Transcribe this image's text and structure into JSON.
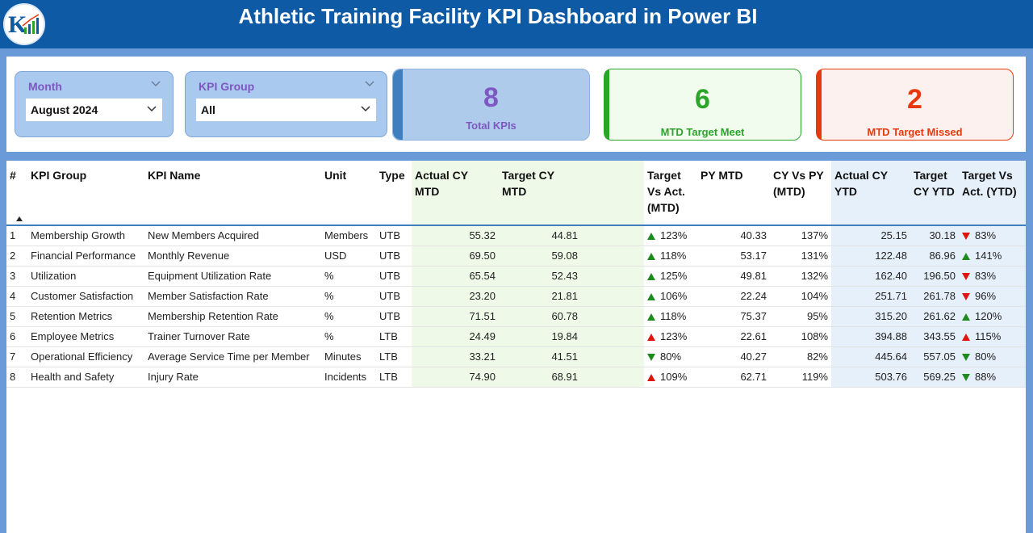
{
  "header": {
    "title": "Athletic Training Facility KPI Dashboard in Power BI",
    "logo_icon": "kpi-logo-icon"
  },
  "slicers": {
    "month": {
      "label": "Month",
      "value": "August 2024"
    },
    "kpi_group": {
      "label": "KPI Group",
      "value": "All"
    }
  },
  "cards": {
    "total": {
      "value": "8",
      "caption": "Total KPIs",
      "color": "#7e57c2"
    },
    "meet": {
      "value": "6",
      "caption": "MTD Target Meet",
      "color": "#2aa52a"
    },
    "missed": {
      "value": "2",
      "caption": "MTD Target Missed",
      "color": "#e8390e"
    }
  },
  "table": {
    "columns": [
      "#",
      "KPI Group",
      "KPI Name",
      "Unit",
      "Type",
      "Actual CY MTD",
      "Target CY MTD",
      "Target Vs Act. (MTD)",
      "PY MTD",
      "CY Vs PY (MTD)",
      "Actual CY YTD",
      "Target CY YTD",
      "Target Vs Act. (YTD)"
    ],
    "rows": [
      {
        "n": "1",
        "group": "Membership Growth",
        "name": "New Members Acquired",
        "unit": "Members",
        "type": "UTB",
        "act_mtd": "55.32",
        "tgt_mtd": "44.81",
        "mtd_icon": "up-g",
        "tva_mtd": "123%",
        "py_mtd": "40.33",
        "cvp_mtd": "137%",
        "act_ytd": "25.15",
        "tgt_ytd": "30.18",
        "ytd_icon": "dn-r",
        "tva_ytd": "83%"
      },
      {
        "n": "2",
        "group": "Financial Performance",
        "name": "Monthly Revenue",
        "unit": "USD",
        "type": "UTB",
        "act_mtd": "69.50",
        "tgt_mtd": "59.08",
        "mtd_icon": "up-g",
        "tva_mtd": "118%",
        "py_mtd": "53.17",
        "cvp_mtd": "131%",
        "act_ytd": "122.48",
        "tgt_ytd": "86.96",
        "ytd_icon": "up-g",
        "tva_ytd": "141%"
      },
      {
        "n": "3",
        "group": "Utilization",
        "name": "Equipment Utilization Rate",
        "unit": "%",
        "type": "UTB",
        "act_mtd": "65.54",
        "tgt_mtd": "52.43",
        "mtd_icon": "up-g",
        "tva_mtd": "125%",
        "py_mtd": "49.81",
        "cvp_mtd": "132%",
        "act_ytd": "162.40",
        "tgt_ytd": "196.50",
        "ytd_icon": "dn-r",
        "tva_ytd": "83%"
      },
      {
        "n": "4",
        "group": "Customer Satisfaction",
        "name": "Member Satisfaction Rate",
        "unit": "%",
        "type": "UTB",
        "act_mtd": "23.20",
        "tgt_mtd": "21.81",
        "mtd_icon": "up-g",
        "tva_mtd": "106%",
        "py_mtd": "22.24",
        "cvp_mtd": "104%",
        "act_ytd": "251.71",
        "tgt_ytd": "261.78",
        "ytd_icon": "dn-r",
        "tva_ytd": "96%"
      },
      {
        "n": "5",
        "group": "Retention Metrics",
        "name": "Membership Retention Rate",
        "unit": "%",
        "type": "UTB",
        "act_mtd": "71.51",
        "tgt_mtd": "60.78",
        "mtd_icon": "up-g",
        "tva_mtd": "118%",
        "py_mtd": "75.37",
        "cvp_mtd": "95%",
        "act_ytd": "315.20",
        "tgt_ytd": "261.62",
        "ytd_icon": "up-g",
        "tva_ytd": "120%"
      },
      {
        "n": "6",
        "group": "Employee Metrics",
        "name": "Trainer Turnover Rate",
        "unit": "%",
        "type": "LTB",
        "act_mtd": "24.49",
        "tgt_mtd": "19.84",
        "mtd_icon": "up-r",
        "tva_mtd": "123%",
        "py_mtd": "22.61",
        "cvp_mtd": "108%",
        "act_ytd": "394.88",
        "tgt_ytd": "343.55",
        "ytd_icon": "up-r",
        "tva_ytd": "115%"
      },
      {
        "n": "7",
        "group": "Operational Efficiency",
        "name": "Average Service Time per Member",
        "unit": "Minutes",
        "type": "LTB",
        "act_mtd": "33.21",
        "tgt_mtd": "41.51",
        "mtd_icon": "dn-g",
        "tva_mtd": "80%",
        "py_mtd": "40.27",
        "cvp_mtd": "82%",
        "act_ytd": "445.64",
        "tgt_ytd": "557.05",
        "ytd_icon": "dn-g",
        "tva_ytd": "80%"
      },
      {
        "n": "8",
        "group": "Health and Safety",
        "name": "Injury Rate",
        "unit": "Incidents",
        "type": "LTB",
        "act_mtd": "74.90",
        "tgt_mtd": "68.91",
        "mtd_icon": "up-r",
        "tva_mtd": "109%",
        "py_mtd": "62.71",
        "cvp_mtd": "119%",
        "act_ytd": "503.76",
        "tgt_ytd": "569.25",
        "ytd_icon": "dn-g",
        "tva_ytd": "88%"
      }
    ]
  }
}
